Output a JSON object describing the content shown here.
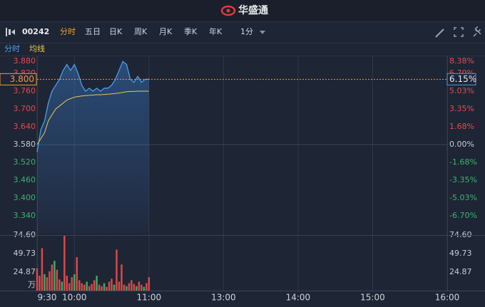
{
  "header": {
    "title": "华盛通"
  },
  "toolbar": {
    "symbol": "00242",
    "tabs": [
      "分时",
      "五日",
      "日K",
      "周K",
      "月K",
      "季K",
      "年K",
      "1分"
    ],
    "active_tab": 0
  },
  "chart_data": [
    {
      "type": "line",
      "x": [
        0,
        3,
        6,
        9,
        12,
        15,
        18,
        21,
        24,
        27,
        30,
        33,
        36,
        39,
        42,
        45,
        48,
        51,
        54,
        57,
        60,
        63,
        66,
        69,
        72,
        75,
        78,
        81,
        84,
        87,
        90
      ],
      "series": [
        {
          "name": "分时",
          "color": "#4a9fe8",
          "values": [
            3.555,
            3.63,
            3.66,
            3.72,
            3.76,
            3.78,
            3.8,
            3.83,
            3.85,
            3.83,
            3.85,
            3.82,
            3.78,
            3.76,
            3.77,
            3.76,
            3.77,
            3.76,
            3.77,
            3.77,
            3.78,
            3.8,
            3.83,
            3.86,
            3.85,
            3.8,
            3.79,
            3.81,
            3.79,
            3.8,
            3.8
          ]
        },
        {
          "name": "均线",
          "color": "#e8c94a",
          "values": [
            3.58,
            3.6,
            3.62,
            3.66,
            3.68,
            3.7,
            3.71,
            3.72,
            3.73,
            3.735,
            3.74,
            3.742,
            3.744,
            3.745,
            3.746,
            3.747,
            3.748,
            3.748,
            3.749,
            3.75,
            3.751,
            3.752,
            3.754,
            3.756,
            3.758,
            3.759,
            3.759,
            3.76,
            3.76,
            3.76,
            3.76
          ]
        }
      ],
      "xlim": [
        0,
        330
      ],
      "ylim": [
        3.28,
        3.88
      ],
      "yticks": [
        {
          "value": 3.88,
          "label": "3.880"
        },
        {
          "value": 3.82,
          "label": "3.820"
        },
        {
          "value": 3.76,
          "label": "3.760"
        },
        {
          "value": 3.7,
          "label": "3.700"
        },
        {
          "value": 3.64,
          "label": "3.640"
        },
        {
          "value": 3.58,
          "label": "3.580"
        },
        {
          "value": 3.52,
          "label": "3.520"
        },
        {
          "value": 3.46,
          "label": "3.460"
        },
        {
          "value": 3.4,
          "label": "3.400"
        },
        {
          "value": 3.34,
          "label": "3.340"
        }
      ],
      "y2lim": [
        -8.38,
        8.38
      ],
      "y2ticks": [
        {
          "value": 8.38,
          "label": "8.38%"
        },
        {
          "value": 6.7,
          "label": "6.70%"
        },
        {
          "value": 5.03,
          "label": "5.03%"
        },
        {
          "value": 3.35,
          "label": "3.35%"
        },
        {
          "value": 1.68,
          "label": "1.68%"
        },
        {
          "value": 0,
          "label": "0.00%"
        },
        {
          "value": -1.68,
          "label": "-1.68%"
        },
        {
          "value": -3.35,
          "label": "-3.35%"
        },
        {
          "value": -5.03,
          "label": "-5.03%"
        },
        {
          "value": -6.7,
          "label": "-6.70%"
        }
      ],
      "last_price": {
        "value": 3.8,
        "label": "3.800"
      },
      "last_change": {
        "value": 6.15,
        "label": "6.15%"
      }
    },
    {
      "type": "bar",
      "x": [
        0,
        2,
        4,
        6,
        8,
        10,
        12,
        14,
        16,
        18,
        20,
        22,
        24,
        26,
        28,
        30,
        32,
        34,
        36,
        38,
        40,
        42,
        44,
        46,
        48,
        50,
        52,
        54,
        56,
        58,
        60,
        62,
        64,
        66,
        68,
        70,
        72,
        74,
        76,
        78,
        80,
        82,
        84,
        86,
        88,
        90
      ],
      "values": [
        30,
        20,
        57,
        22,
        18,
        26,
        35,
        40,
        28,
        15,
        12,
        74,
        20,
        10,
        18,
        22,
        45,
        14,
        10,
        8,
        12,
        6,
        9,
        14,
        20,
        8,
        6,
        10,
        5,
        12,
        16,
        8,
        55,
        12,
        35,
        8,
        6,
        10,
        14,
        9,
        6,
        12,
        8,
        5,
        10,
        18
      ],
      "bar_colors": [
        "#e04848",
        "#e04848",
        "#e04848",
        "#2db36a",
        "#e04848",
        "#e04848",
        "#e04848",
        "#2db36a",
        "#e04848",
        "#e04848",
        "#2db36a",
        "#e04848",
        "#e04848",
        "#e04848",
        "#e04848",
        "#2db36a",
        "#e04848",
        "#e04848",
        "#e04848",
        "#e04848",
        "#2db36a",
        "#e04848",
        "#e04848",
        "#e04848",
        "#2db36a",
        "#e04848",
        "#e04848",
        "#2db36a",
        "#e04848",
        "#e04848",
        "#e04848",
        "#2db36a",
        "#e04848",
        "#e04848",
        "#e04848",
        "#e04848",
        "#2db36a",
        "#e04848",
        "#e04848",
        "#e04848",
        "#2db36a",
        "#e04848",
        "#e04848",
        "#2db36a",
        "#e04848",
        "#e04848"
      ],
      "xlim": [
        0,
        330
      ],
      "xticks": [
        {
          "value": 0,
          "label": "9:30"
        },
        {
          "value": 30,
          "label": "10:00"
        },
        {
          "value": 90,
          "label": "11:00"
        },
        {
          "value": 150,
          "label": "13:00"
        },
        {
          "value": 210,
          "label": "14:00"
        },
        {
          "value": 270,
          "label": "15:00"
        },
        {
          "value": 330,
          "label": "16:00"
        }
      ],
      "ylim": [
        0,
        74.6
      ],
      "yticks": [
        {
          "value": 74.6,
          "label": "74.60"
        },
        49.73,
        24.87
      ],
      "unit": "万"
    }
  ]
}
